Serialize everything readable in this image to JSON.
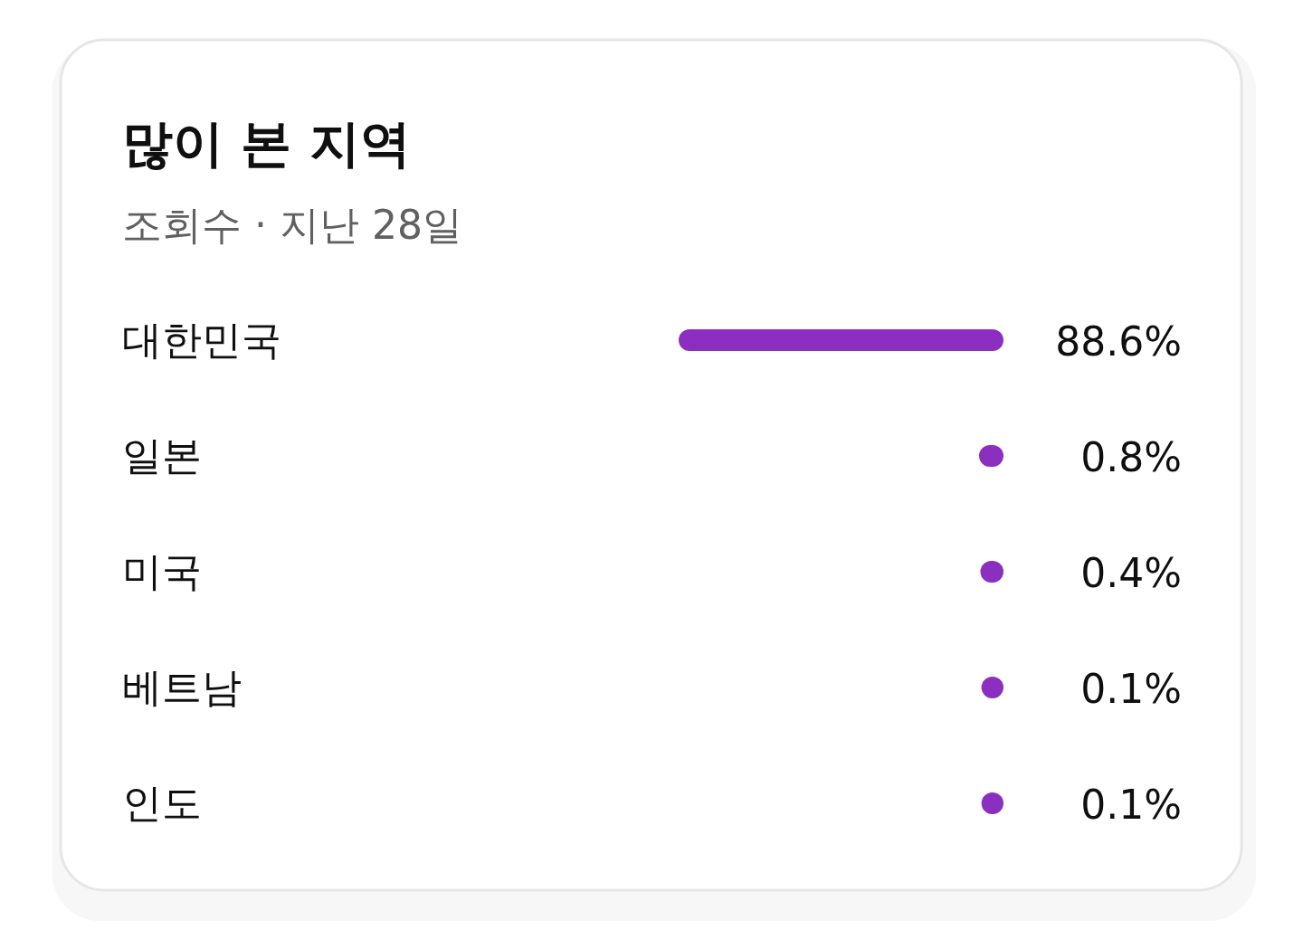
{
  "chart_data": {
    "type": "bar",
    "orientation": "horizontal",
    "title": "많이 본 지역",
    "subtitle": "조회수 · 지난 28일",
    "categories": [
      "대한민국",
      "일본",
      "미국",
      "베트남",
      "인도"
    ],
    "values": [
      88.6,
      0.8,
      0.4,
      0.1,
      0.1
    ],
    "color": "#8b2fc0",
    "value_labels": [
      "88.6%",
      "0.8%",
      "0.4%",
      "0.1%",
      "0.1%"
    ]
  }
}
